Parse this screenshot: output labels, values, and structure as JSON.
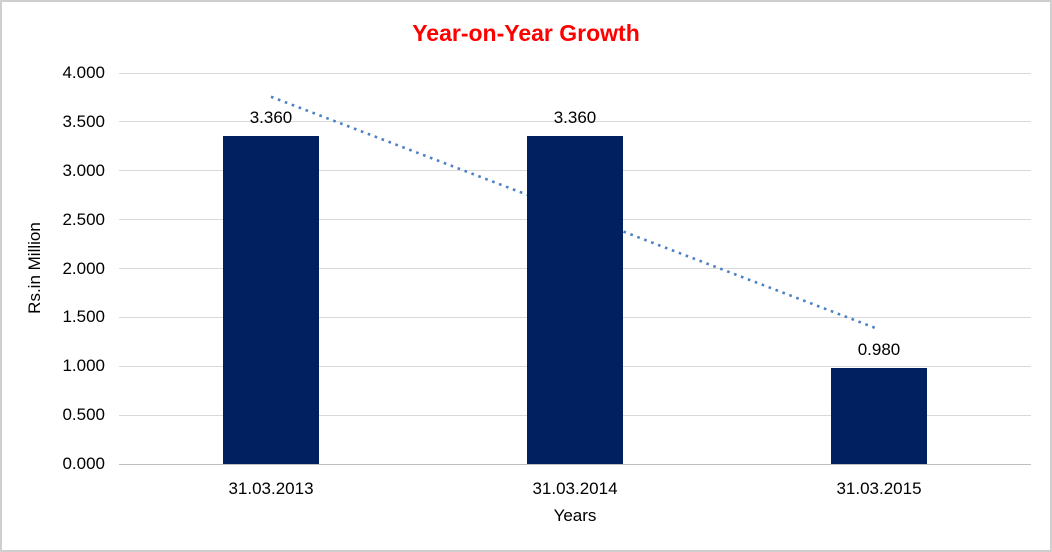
{
  "chart_data": {
    "type": "bar",
    "title": "Year-on-Year Growth",
    "title_color": "#FF0000",
    "categories": [
      "31.03.2013",
      "31.03.2014",
      "31.03.2015"
    ],
    "values": [
      3.36,
      3.36,
      0.98
    ],
    "data_labels": [
      "3.360",
      "3.360",
      "0.980"
    ],
    "xlabel": "Years",
    "ylabel": "Rs.in Million",
    "ylim": [
      0,
      4
    ],
    "ytick_labels": [
      "0.000",
      "0.500",
      "1.000",
      "1.500",
      "2.000",
      "2.500",
      "3.000",
      "3.500",
      "4.000"
    ],
    "grid": true,
    "legend": "none",
    "bar_color": "#002060",
    "trendline": {
      "type": "linear",
      "style": "dotted",
      "color": "#4A80C4",
      "start_value": 3.757,
      "end_value": 1.377
    }
  }
}
